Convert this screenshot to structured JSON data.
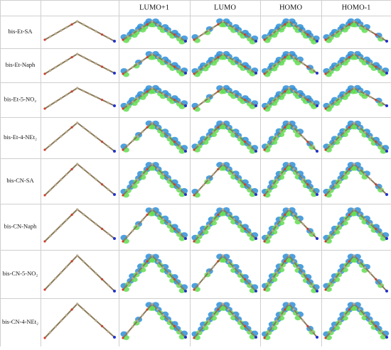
{
  "table": {
    "header": [
      "LUMO+1",
      "LUMO",
      "HOMO",
      "HOMO-1"
    ],
    "rows": [
      "bis-Et-SA",
      "bis-Et-Naph",
      "bis-Et-5-NO₂",
      "bis-Et-4-NEt₂",
      "bis-CN-SA",
      "bis-CN-Naph",
      "bis-CN-5-NO₂",
      "bis-CN-4-NEt₂"
    ]
  }
}
